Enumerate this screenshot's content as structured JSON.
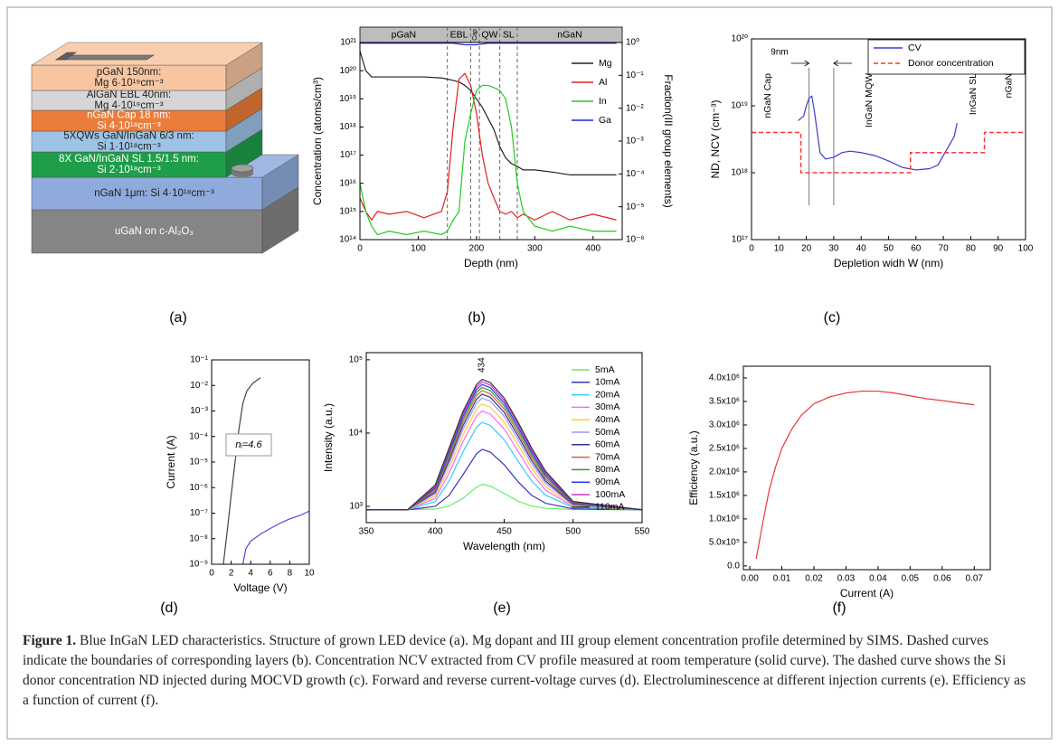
{
  "structure": {
    "layers": [
      {
        "lines": [
          "pGaN 150nm:",
          "Mg 6·10¹⁹cm⁻³"
        ],
        "color": "#f7c6a0",
        "text_color": "#222222"
      },
      {
        "lines": [
          "AlGaN EBL 40nm:",
          "Mg 4·10¹⁹cm⁻³"
        ],
        "color": "#d6d6d6",
        "text_color": "#222222"
      },
      {
        "lines": [
          "nGaN Cap 18 nm:",
          "Si 4·10¹⁸cm⁻³"
        ],
        "color": "#ea7d3a",
        "text_color": "#ffffff"
      },
      {
        "lines": [
          "5XQWs GaN/InGaN 6/3 nm:",
          "Si 1·10¹⁸cm⁻³"
        ],
        "color": "#9dc3e6",
        "text_color": "#222222"
      },
      {
        "lines": [
          "8X GaN/InGaN SL 1.5/1.5 nm:",
          "Si 2·10¹⁸cm⁻³"
        ],
        "color": "#1f9e4a",
        "text_color": "#ffffff"
      },
      {
        "lines": [
          "nGaN 1μm: Si 4·10¹⁸cm⁻³"
        ],
        "color": "#8fabdc",
        "text_color": "#222222"
      },
      {
        "lines": [
          "uGaN on c-Al₂O₃"
        ],
        "color": "#858585",
        "text_color": "#ffffff"
      }
    ]
  },
  "panel_labels": [
    "(a)",
    "(b)",
    "(c)",
    "(d)",
    "(e)",
    "(f)"
  ],
  "chart_data": [
    {
      "type": "line",
      "x_label": "Depth (nm)",
      "y_label": "Concentration (atoms/cm³)",
      "y2_label": "Fraction(III group elements)",
      "xlim": [
        0,
        450
      ],
      "xticks": [
        0,
        100,
        200,
        300,
        400
      ],
      "ylim": [
        100000000000000.0,
        1e+21
      ],
      "y_log": true,
      "yticks": [
        {
          "value": 100000000000000.0,
          "label": "10¹⁴"
        },
        {
          "value": 1000000000000000.0,
          "label": "10¹⁵"
        },
        {
          "value": 1e+16,
          "label": "10¹⁶"
        },
        {
          "value": 1e+17,
          "label": "10¹⁷"
        },
        {
          "value": 1e+18,
          "label": "10¹⁸"
        },
        {
          "value": 1e+19,
          "label": "10¹⁹"
        },
        {
          "value": 1e+20,
          "label": "10²⁰"
        },
        {
          "value": 1e+21,
          "label": "10²¹"
        }
      ],
      "y2lim": [
        1e-06,
        1
      ],
      "y2_log": true,
      "y2ticks": [
        {
          "value": 1e-06,
          "label": "10⁻⁶"
        },
        {
          "value": 1e-05,
          "label": "10⁻⁵"
        },
        {
          "value": 0.0001,
          "label": "10⁻⁴"
        },
        {
          "value": 0.001,
          "label": "10⁻³"
        },
        {
          "value": 0.01,
          "label": "10⁻²"
        },
        {
          "value": 0.1,
          "label": "10⁻¹"
        },
        {
          "value": 1,
          "label": "10⁰"
        }
      ],
      "layers": [
        "pGaN",
        "EBL",
        "Cap",
        "QW",
        "SL",
        "nGaN"
      ],
      "layer_boundaries": [
        150,
        190,
        205,
        240,
        270
      ],
      "legend": "upper right",
      "x": [
        0,
        10,
        20,
        30,
        50,
        80,
        110,
        140,
        150,
        160,
        170,
        180,
        190,
        200,
        210,
        220,
        230,
        240,
        250,
        260,
        270,
        280,
        300,
        330,
        360,
        400,
        440
      ],
      "series": [
        {
          "name": "Mg",
          "color": "#222222",
          "values": [
            5e+20,
            1e+20,
            6e+19,
            6e+19,
            6e+19,
            6e+19,
            6e+19,
            5.5e+19,
            5e+19,
            4.5e+19,
            4e+19,
            3e+19,
            2e+19,
            1e+19,
            5e+18,
            2e+18,
            8e+17,
            2e+17,
            8e+16,
            5e+16,
            4e+16,
            3e+16,
            3e+16,
            2.5e+16,
            2e+16,
            2e+16,
            2e+16
          ]
        },
        {
          "name": "Al",
          "color": "#e02020",
          "values": [
            3000000000000000.0,
            1000000000000000.0,
            500000000000000.0,
            1000000000000000.0,
            800000000000000.0,
            1000000000000000.0,
            600000000000000.0,
            1000000000000000.0,
            5000000000000000.0,
            1e+18,
            5e+19,
            8e+19,
            3e+19,
            3e+18,
            1e+17,
            1e+16,
            3000000000000000.0,
            1000000000000000.0,
            800000000000000.0,
            1000000000000000.0,
            600000000000000.0,
            800000000000000.0,
            500000000000000.0,
            1000000000000000.0,
            500000000000000.0,
            800000000000000.0,
            500000000000000.0
          ]
        },
        {
          "name": "In",
          "color": "#22cc22",
          "values": [
            1e+16,
            1000000000000000.0,
            300000000000000.0,
            150000000000000.0,
            200000000000000.0,
            150000000000000.0,
            200000000000000.0,
            150000000000000.0,
            200000000000000.0,
            500000000000000.0,
            1000000000000000.0,
            3e+17,
            3e+18,
            2e+19,
            3e+19,
            3e+19,
            2.5e+19,
            2e+19,
            1e+19,
            1e+18,
            1e+16,
            1000000000000000.0,
            300000000000000.0,
            200000000000000.0,
            300000000000000.0,
            200000000000000.0,
            200000000000000.0
          ]
        },
        {
          "name": "Ga",
          "color": "#2222dd",
          "axis": "y2",
          "values": [
            0.95,
            0.95,
            0.95,
            0.95,
            0.95,
            0.95,
            0.95,
            0.95,
            0.95,
            0.95,
            0.9,
            0.85,
            0.85,
            0.85,
            0.9,
            0.95,
            0.95,
            0.95,
            0.95,
            0.95,
            0.95,
            0.95,
            0.95,
            0.95,
            0.95,
            0.95,
            0.95
          ]
        }
      ]
    },
    {
      "type": "line",
      "x_label": "Depletion widh W (nm)",
      "y_label": "ND, NCV (cm⁻³)",
      "xlim": [
        0,
        100
      ],
      "xticks": [
        0,
        10,
        20,
        30,
        40,
        50,
        60,
        70,
        80,
        90,
        100
      ],
      "ylim": [
        1e+17,
        1e+20
      ],
      "y_log": true,
      "yticks": [
        {
          "value": 1e+17,
          "label": "10¹⁷"
        },
        {
          "value": 1e+18,
          "label": "10¹⁸"
        },
        {
          "value": 1e+19,
          "label": "10¹⁹"
        },
        {
          "value": 1e+20,
          "label": "10²⁰"
        }
      ],
      "legend": "upper right",
      "annotation": "9nm",
      "marker_lines": [
        21,
        30
      ],
      "region_labels": [
        "nGaN Cap",
        "InGaN MQW",
        "InGaN SL",
        "nGaN"
      ],
      "series": [
        {
          "name": "CV",
          "color": "#3a3ad0",
          "x": [
            17,
            19,
            20,
            21,
            22,
            23,
            24,
            25,
            27,
            30,
            33,
            36,
            40,
            45,
            50,
            55,
            60,
            65,
            68,
            70,
            72,
            74,
            75
          ],
          "values": [
            6e+18,
            7e+18,
            1e+19,
            1.3e+19,
            1.4e+19,
            8e+18,
            4e+18,
            2e+18,
            1.6e+18,
            1.7e+18,
            2e+18,
            2.1e+18,
            2e+18,
            1.8e+18,
            1.5e+18,
            1.2e+18,
            1.1e+18,
            1.15e+18,
            1.3e+18,
            1.8e+18,
            2.5e+18,
            3.5e+18,
            5.5e+18
          ]
        },
        {
          "name": "Donor concentration",
          "color": "#ff3333",
          "dash": true,
          "x": [
            0,
            18,
            18,
            58,
            58,
            85,
            85,
            100
          ],
          "values": [
            4e+18,
            4e+18,
            1e+18,
            1e+18,
            2e+18,
            2e+18,
            4e+18,
            4e+18
          ]
        }
      ]
    },
    {
      "type": "line",
      "x_label": "Voltage (V)",
      "y_label": "Current (A)",
      "xlim": [
        0,
        10
      ],
      "xticks": [
        0,
        2,
        4,
        6,
        8,
        10
      ],
      "ylim": [
        1e-09,
        0.1
      ],
      "y_log": true,
      "yticks": [
        {
          "value": 1e-09,
          "label": "10⁻⁹"
        },
        {
          "value": 1e-08,
          "label": "10⁻⁸"
        },
        {
          "value": 1e-07,
          "label": "10⁻⁷"
        },
        {
          "value": 1e-06,
          "label": "10⁻⁶"
        },
        {
          "value": 1e-05,
          "label": "10⁻⁵"
        },
        {
          "value": 0.0001,
          "label": "10⁻⁴"
        },
        {
          "value": 0.001,
          "label": "10⁻³"
        },
        {
          "value": 0.01,
          "label": "10⁻²"
        },
        {
          "value": 0.1,
          "label": "10⁻¹"
        }
      ],
      "annotation": "nᵢ=4.6",
      "series": [
        {
          "color": "#444444",
          "x": [
            1.2,
            1.6,
            2.0,
            2.4,
            2.8,
            3.2,
            3.6,
            4.2,
            5
          ],
          "values": [
            1e-09,
            2e-08,
            5e-07,
            1e-05,
            0.0002,
            0.002,
            0.006,
            0.012,
            0.02
          ]
        },
        {
          "color": "#4a4ae0",
          "x": [
            3.2,
            3.5,
            4,
            5,
            6,
            7,
            8,
            9,
            10
          ],
          "values": [
            1e-09,
            4e-09,
            8e-09,
            1.5e-08,
            2.5e-08,
            4e-08,
            6e-08,
            8e-08,
            1.2e-07
          ]
        }
      ]
    },
    {
      "type": "line",
      "x_label": "Wavelength (nm)",
      "y_label": "Intensity (a.u.)",
      "xlim": [
        350,
        550
      ],
      "xticks": [
        350,
        400,
        450,
        500,
        550
      ],
      "ylim": [
        600,
        125000
      ],
      "y_log": true,
      "yticks": [
        {
          "value": 1000,
          "label": "10³"
        },
        {
          "value": 10000,
          "label": "10⁴"
        },
        {
          "value": 100000,
          "label": "10⁵"
        }
      ],
      "peak": 434,
      "legend": "upper right",
      "x": [
        350,
        380,
        400,
        410,
        420,
        430,
        434,
        440,
        450,
        460,
        470,
        480,
        500,
        550
      ],
      "series": [
        {
          "name": "5mA",
          "color": "#66ee66",
          "values": [
            900,
            900,
            922,
            1010,
            1285,
            1835,
            2000,
            1890,
            1505,
            1175,
            1010,
            944,
            906,
            900
          ]
        },
        {
          "name": "10mA",
          "color": "#3333bb",
          "values": [
            900,
            900,
            1002,
            1410,
            2685,
            5235,
            6000,
            5490,
            3705,
            2175,
            1410,
            1104,
            926,
            900
          ]
        },
        {
          "name": "20mA",
          "color": "#33ccff",
          "values": [
            900,
            900,
            1162,
            2210,
            5485,
            12035,
            14000,
            12690,
            8105,
            4175,
            2210,
            1424,
            966,
            900
          ]
        },
        {
          "name": "30mA",
          "color": "#ff66ff",
          "values": [
            900,
            900,
            1282,
            2810,
            7585,
            17135,
            20000,
            18090,
            11405,
            5675,
            2810,
            1664,
            996,
            900
          ]
        },
        {
          "name": "40mA",
          "color": "#ffcc33",
          "values": [
            900,
            900,
            1382,
            3310,
            9335,
            21385,
            25000,
            22590,
            14155,
            6925,
            3310,
            1864,
            1021,
            900
          ]
        },
        {
          "name": "50mA",
          "color": "#9999ff",
          "values": [
            900,
            900,
            1482,
            3810,
            11085,
            25635,
            30000,
            27090,
            16905,
            8175,
            3810,
            2064,
            1046,
            900
          ]
        },
        {
          "name": "60mA",
          "color": "#333399",
          "values": [
            900,
            900,
            1562,
            4210,
            12485,
            29035,
            34000,
            30690,
            19105,
            9175,
            4210,
            2224,
            1066,
            900
          ]
        },
        {
          "name": "70mA",
          "color": "#cc6633",
          "values": [
            900,
            900,
            1642,
            4610,
            13885,
            32435,
            38000,
            34290,
            21305,
            10175,
            4610,
            2384,
            1086,
            900
          ]
        },
        {
          "name": "80mA",
          "color": "#339933",
          "values": [
            900,
            900,
            1722,
            5010,
            15285,
            35835,
            42000,
            37890,
            23505,
            11175,
            5010,
            2544,
            1106,
            900
          ]
        },
        {
          "name": "90mA",
          "color": "#3333ff",
          "values": [
            900,
            900,
            1802,
            5410,
            16685,
            39235,
            46000,
            41490,
            25705,
            12175,
            5410,
            2704,
            1126,
            900
          ]
        },
        {
          "name": "100mA",
          "color": "#cc33cc",
          "values": [
            900,
            900,
            1882,
            5810,
            18085,
            42635,
            50000,
            45090,
            27905,
            13175,
            5810,
            2864,
            1146,
            900
          ]
        },
        {
          "name": "110mA",
          "color": "#333333",
          "values": [
            900,
            900,
            1962,
            6210,
            19485,
            46035,
            54000,
            48690,
            30105,
            14175,
            6210,
            3024,
            1166,
            900
          ]
        }
      ]
    },
    {
      "type": "line",
      "x_label": "Current (A)",
      "y_label": "Efficiency (a.u.)",
      "xlim": [
        -0.002,
        0.075
      ],
      "xticks": [
        {
          "value": 0,
          "label": "0.00"
        },
        0.01,
        0.02,
        0.03,
        0.04,
        0.05,
        0.06,
        0.07
      ],
      "ylim": [
        -80000,
        4250000
      ],
      "yticks": [
        {
          "value": 0,
          "label": "0.0"
        },
        {
          "value": 500000,
          "label": "5.0x10⁵"
        },
        {
          "value": 1000000,
          "label": "1.0x10⁶"
        },
        {
          "value": 1500000,
          "label": "1.5x10⁶"
        },
        {
          "value": 2000000,
          "label": "2.0x10⁶"
        },
        {
          "value": 2500000,
          "label": "2.5x10⁶"
        },
        {
          "value": 3000000,
          "label": "3.0x10⁶"
        },
        {
          "value": 3500000,
          "label": "3.5x10⁶"
        },
        {
          "value": 4000000,
          "label": "4.0x10⁶"
        }
      ],
      "color": "#e8383d",
      "x": [
        0.002,
        0.004,
        0.006,
        0.008,
        0.01,
        0.013,
        0.016,
        0.02,
        0.025,
        0.03,
        0.035,
        0.04,
        0.045,
        0.05,
        0.055,
        0.06,
        0.065,
        0.07
      ],
      "values": [
        150000,
        900000,
        1600000,
        2100000,
        2500000,
        2900000,
        3200000,
        3450000,
        3600000,
        3680000,
        3720000,
        3720000,
        3680000,
        3620000,
        3560000,
        3520000,
        3470000,
        3430000
      ]
    }
  ],
  "caption": {
    "label": "Figure 1.",
    "text": "Blue InGaN LED characteristics. Structure of grown LED device (a). Mg dopant and III group element concentration profile determined by SIMS. Dashed curves indicate the boundaries of corresponding layers (b). Concentration NCV extracted from CV profile measured at room temperature (solid curve). The dashed curve shows the Si donor concentration ND injected during MOCVD growth (c). Forward and reverse current-voltage curves (d). Electroluminescence at different injection currents (e). Efficiency as a function of current (f)."
  }
}
